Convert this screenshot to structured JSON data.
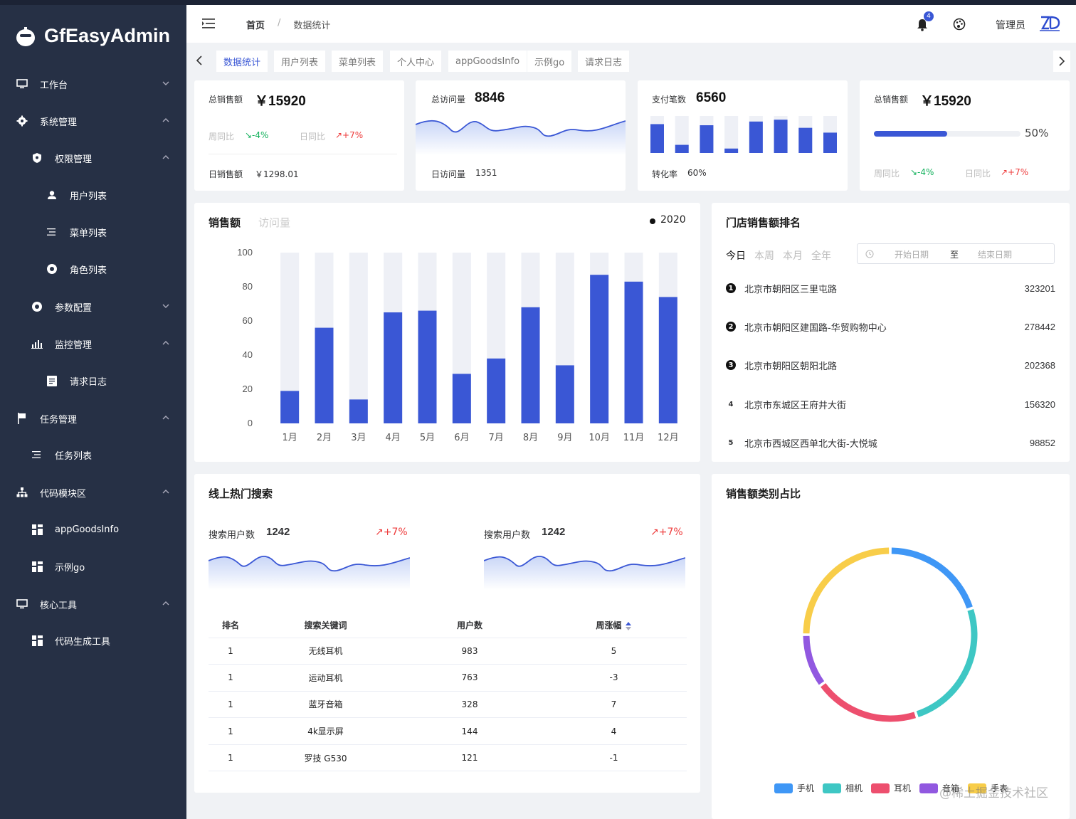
{
  "app": {
    "title": "GfEasyAdmin"
  },
  "sidebar": {
    "items": [
      {
        "label": "工作台"
      },
      {
        "label": "系统管理"
      },
      {
        "label": "权限管理"
      },
      {
        "label": "用户列表"
      },
      {
        "label": "菜单列表"
      },
      {
        "label": "角色列表"
      },
      {
        "label": "参数配置"
      },
      {
        "label": "监控管理"
      },
      {
        "label": "请求日志"
      },
      {
        "label": "任务管理"
      },
      {
        "label": "任务列表"
      },
      {
        "label": "代码模块区"
      },
      {
        "label": "appGoodsInfo"
      },
      {
        "label": "示例go"
      },
      {
        "label": "核心工具"
      },
      {
        "label": "代码生成工具"
      }
    ]
  },
  "navbar": {
    "breadcrumb": [
      "首页",
      "数据统计"
    ],
    "separator": "/",
    "notification_count": "4",
    "user": "管理员"
  },
  "tags": [
    "数据统计",
    "用户列表",
    "菜单列表",
    "个人中心",
    "appGoodsInfo",
    "示例go",
    "请求日志"
  ],
  "stats": {
    "sales": {
      "label": "总销售额",
      "value": "￥15920",
      "wow_label": "周同比",
      "wow": "↘-4%",
      "dod_label": "日同比",
      "dod": "↗+7%",
      "foot_label": "日销售额",
      "foot_value": "￥1298.01"
    },
    "visits": {
      "label": "总访问量",
      "value": "8846",
      "foot_label": "日访问量",
      "foot_value": "1351"
    },
    "payments": {
      "label": "支付笔数",
      "value": "6560",
      "foot_label": "转化率",
      "foot_value": "60%",
      "bars": [
        78,
        22,
        75,
        12,
        85,
        90,
        68,
        55
      ]
    },
    "sales2": {
      "label": "总销售额",
      "value": "￥15920",
      "progress": 50,
      "progress_text": "50%",
      "wow_label": "周同比",
      "wow": "↘-4%",
      "dod_label": "日同比",
      "dod": "↗+7%"
    }
  },
  "sales_chart": {
    "tab_active": "销售额",
    "tab_inactive": "访问量",
    "legend": "2020"
  },
  "chart_data": [
    {
      "type": "bar",
      "categories": [
        "1月",
        "2月",
        "3月",
        "4月",
        "5月",
        "6月",
        "7月",
        "8月",
        "9月",
        "10月",
        "11月",
        "12月"
      ],
      "values": [
        19,
        56,
        14,
        65,
        66,
        29,
        38,
        68,
        34,
        87,
        83,
        74
      ],
      "ylim": [
        0,
        100
      ],
      "yticks": [
        0,
        20,
        40,
        60,
        80,
        100
      ],
      "series": [
        {
          "name": "2020",
          "values": [
            19,
            56,
            14,
            65,
            66,
            29,
            38,
            68,
            34,
            87,
            83,
            74
          ]
        }
      ]
    },
    {
      "type": "pie",
      "labels": [
        "手机",
        "相机",
        "耳机",
        "音箱",
        "手表"
      ],
      "values": [
        20,
        25,
        20,
        10,
        25
      ]
    }
  ],
  "ranking": {
    "title": "门店销售额排名",
    "periods": [
      "今日",
      "本周",
      "本月",
      "全年"
    ],
    "date_start": "开始日期",
    "date_sep": "至",
    "date_end": "结束日期",
    "rows": [
      {
        "rank": "1",
        "name": "北京市朝阳区三里屯路",
        "value": "323201"
      },
      {
        "rank": "2",
        "name": "北京市朝阳区建国路-华贸购物中心",
        "value": "278442"
      },
      {
        "rank": "3",
        "name": "北京市朝阳区朝阳北路",
        "value": "202368"
      },
      {
        "rank": "4",
        "name": "北京市东城区王府井大街",
        "value": "156320"
      },
      {
        "rank": "5",
        "name": "北京市西城区西单北大街-大悦城",
        "value": "98852"
      }
    ]
  },
  "search": {
    "title": "线上热门搜索",
    "left": {
      "label": "搜索用户数",
      "value": "1242",
      "change": "↗+7%"
    },
    "right": {
      "label": "搜索用户数",
      "value": "1242",
      "change": "↗+7%"
    },
    "columns": [
      "排名",
      "搜索关键词",
      "用户数",
      "周涨幅"
    ],
    "rows": [
      [
        "1",
        "无线耳机",
        "983",
        "5"
      ],
      [
        "1",
        "运动耳机",
        "763",
        "-3"
      ],
      [
        "1",
        "蓝牙音箱",
        "328",
        "7"
      ],
      [
        "1",
        "4k显示屏",
        "144",
        "4"
      ],
      [
        "1",
        "罗技 G530",
        "121",
        "-1"
      ]
    ]
  },
  "pie": {
    "title": "销售额类别占比",
    "watermark": "@稀土掘金技术社区"
  },
  "colors": {
    "primary": "#3a57d5",
    "sidebar": "#263045",
    "pie": [
      "#3f97f6",
      "#3ec7c4",
      "#ed4f6e",
      "#9158e0",
      "#f8cd49"
    ]
  }
}
